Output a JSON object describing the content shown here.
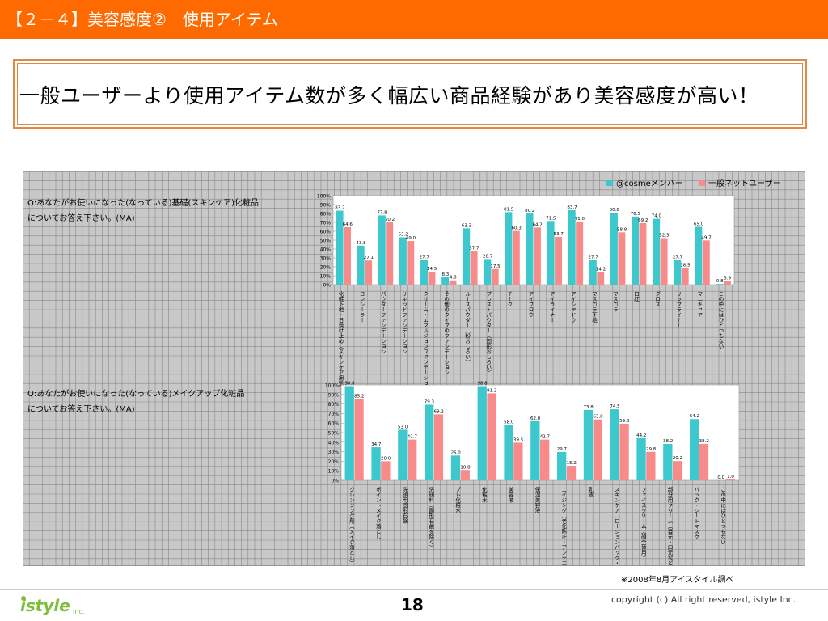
{
  "header": {
    "title": "【２－４】美容感度②　使用アイテム"
  },
  "headline": {
    "text": "一般ユーザーより使用アイテム数が多く幅広い商品経験があり美容感度が高い！"
  },
  "colors": {
    "cosme": "#3cc8cc",
    "general": "#f88a8a",
    "header": "#ff6a00",
    "grid": "#888888",
    "panel_bg": "#c8c8c8"
  },
  "legend": {
    "series1": "@cosmeメンバー",
    "series2": "一般ネットユーザー"
  },
  "questions": {
    "q1": "Q:あなたがお使いになった(なっている)基礎(スキンケア)化粧品についてお答え下さい。(MA)",
    "q2": "Q:あなたがお使いになった(なっている)メイクアップ化粧品についてお答え下さい。(MA)"
  },
  "footer": {
    "source": "※2008年8月アイスタイル調べ",
    "page": "18",
    "copyright": "copyright (c) All right reserved, istyle Inc.",
    "logo_text": "istyle",
    "logo_suffix": "Inc."
  },
  "chart_data": [
    {
      "type": "bar",
      "title": "",
      "ylim": [
        0,
        100
      ],
      "yticks": [
        "0%",
        "10%",
        "20%",
        "30%",
        "40%",
        "50%",
        "60%",
        "70%",
        "80%",
        "90%",
        "100%"
      ],
      "categories": [
        "化粧下地・日焼け止め（スキンケア用途）",
        "コンシーラー",
        "パウダーファンデーション",
        "リキッドファンデーション",
        "クリーム・エマルジョンファンデーション",
        "その他のタイプのファンデーション",
        "ルースパウダー（粉おしろい）",
        "プレストパウダー（固形おしろい）",
        "チーク",
        "アイブロウ",
        "アイライナー",
        "アイシャドウ",
        "マスカラ下地",
        "マスカラ",
        "口紅",
        "グロス",
        "リップライナー",
        "マニキュア",
        "この中にはひとつもない"
      ],
      "series": [
        {
          "name": "@cosmeメンバー",
          "values": [
            83.2,
            43.8,
            77.8,
            53.2,
            27.7,
            8.3,
            63.3,
            28.7,
            81.5,
            80.2,
            71.5,
            83.7,
            27.7,
            80.8,
            76.5,
            74.0,
            27.7,
            65.0,
            0.8
          ]
        },
        {
          "name": "一般ネットユーザー",
          "values": [
            64.6,
            27.1,
            70.2,
            49.0,
            14.5,
            4.8,
            37.7,
            17.5,
            60.3,
            64.2,
            53.7,
            71.0,
            14.2,
            58.8,
            69.2,
            52.3,
            18.5,
            49.7,
            3.9
          ]
        }
      ]
    },
    {
      "type": "bar",
      "title": "",
      "ylim": [
        0,
        100
      ],
      "yticks": [
        "0%",
        "10%",
        "20%",
        "30%",
        "40%",
        "50%",
        "60%",
        "70%",
        "80%",
        "90%",
        "100%"
      ],
      "categories": [
        "クレンジング剤（メイク落とし）",
        "ポイントメイク落とし",
        "洗顔用固形石鹸",
        "洗顔料（固形石鹸を除く）",
        "ブレ化粧水",
        "化粧水",
        "美容液",
        "保湿美容液",
        "エイジング（老化防止・アンチエイジング）美容液",
        "乳液",
        "スキンケア（ローションパック・ボディ用化粧品を除く）",
        "フェイスクリーム（顔全体用）",
        "部分用クリーム（目元・口元など）",
        "パック・シートマスク",
        "この中にはひとつもない"
      ],
      "series": [
        {
          "name": "@cosmeメンバー",
          "values": [
            98.8,
            34.7,
            53.0,
            79.3,
            26.0,
            98.8,
            58.0,
            62.0,
            29.7,
            73.8,
            74.5,
            44.2,
            38.2,
            64.2,
            0.0
          ]
        },
        {
          "name": "一般ネットユーザー",
          "values": [
            85.2,
            20.0,
            42.7,
            69.2,
            10.8,
            91.2,
            39.5,
            42.7,
            15.2,
            63.8,
            59.3,
            29.8,
            20.2,
            38.2,
            1.0
          ]
        }
      ]
    }
  ]
}
